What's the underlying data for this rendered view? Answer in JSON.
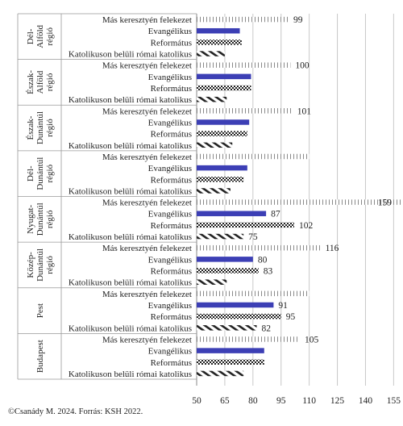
{
  "chart_data": {
    "type": "bar",
    "orientation": "horizontal",
    "xlim": [
      50,
      160
    ],
    "xticks": [
      50,
      65,
      80,
      95,
      110,
      125,
      140,
      155
    ],
    "grid": "vertical",
    "series": [
      {
        "name": "Más keresztyén felekezet",
        "pattern": "sparse-vertical-dashes",
        "color": "#9a9a9a"
      },
      {
        "name": "Evangélikus",
        "pattern": "solid",
        "color": "#3c3fb5"
      },
      {
        "name": "Református",
        "pattern": "checkered",
        "color": "#222222"
      },
      {
        "name": "Katolikuson belüli római katolikus",
        "pattern": "diagonal-dashes",
        "color": "#222222"
      }
    ],
    "groups": [
      {
        "region": "Dél-Alföld régió",
        "values": [
          99,
          73,
          74,
          65
        ],
        "labels": [
          "99",
          "",
          "",
          ""
        ]
      },
      {
        "region": "Észak-Alföld régió",
        "values": [
          100,
          79,
          79,
          66
        ],
        "labels": [
          "100",
          "",
          "",
          ""
        ]
      },
      {
        "region": "Észak-Dunántúl régió",
        "values": [
          101,
          78,
          77,
          69
        ],
        "labels": [
          "101",
          "",
          "",
          ""
        ]
      },
      {
        "region": "Dél-Dunántúl régió",
        "values": [
          110,
          77,
          75,
          68
        ],
        "labels": [
          "",
          "",
          "",
          ""
        ]
      },
      {
        "region": "Nyugat-Dunántúl régió",
        "values": [
          159,
          87,
          102,
          75
        ],
        "labels": [
          "159",
          "87",
          "102",
          "75"
        ]
      },
      {
        "region": "Közép-Dunántúl régió",
        "values": [
          116,
          80,
          83,
          66
        ],
        "labels": [
          "116",
          "80",
          "83",
          ""
        ]
      },
      {
        "region": "Pest",
        "values": [
          110,
          91,
          95,
          82
        ],
        "labels": [
          "",
          "91",
          "95",
          "82"
        ]
      },
      {
        "region": "Budapest",
        "values": [
          105,
          86,
          86,
          75
        ],
        "labels": [
          "105",
          "",
          "",
          ""
        ]
      }
    ]
  },
  "credit": "©Csanády M. 2024. Forrás: KSH 2022."
}
